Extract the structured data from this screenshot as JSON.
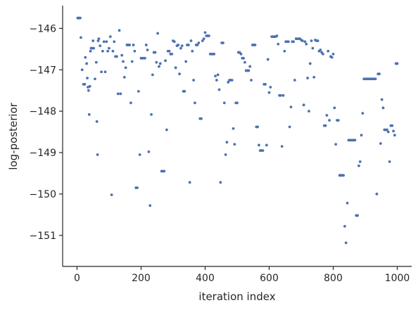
{
  "chart_data": {
    "type": "scatter",
    "title": "",
    "xlabel": "iteration index",
    "ylabel": "log-posterior",
    "xlim": [
      -45,
      1045
    ],
    "ylim": [
      -151.75,
      -145.45
    ],
    "xticks": [
      0,
      200,
      400,
      600,
      800,
      1000
    ],
    "xtick_labels": [
      "0",
      "200",
      "400",
      "600",
      "800",
      "1000"
    ],
    "yticks": [
      -146,
      -147,
      -148,
      -149,
      -150,
      -151
    ],
    "ytick_labels": [
      "−146",
      "−147",
      "−148",
      "−149",
      "−150",
      "−151"
    ],
    "grid": false,
    "legend": "none",
    "marker_color": "#4c72b0",
    "plateau_color": "#a9bcd8",
    "series": [
      {
        "x": [
          2,
          4,
          6,
          8,
          10,
          12,
          16,
          20,
          24,
          26,
          30,
          32,
          34,
          36,
          38,
          40,
          42,
          44,
          46,
          48,
          50,
          52,
          56,
          60,
          62,
          64,
          66,
          68,
          72,
          76,
          80,
          84,
          88,
          92,
          96,
          100,
          104,
          108,
          112,
          116,
          120,
          124,
          128,
          132,
          136,
          140,
          144,
          148,
          152,
          156,
          160,
          164,
          168,
          172,
          176,
          180,
          184,
          188,
          192,
          196,
          200,
          204,
          208,
          212,
          216,
          220,
          224,
          228,
          232,
          236,
          240,
          244,
          248,
          252,
          256,
          260,
          264,
          268,
          272,
          276,
          280,
          284,
          288,
          292,
          296,
          300,
          304,
          308,
          312,
          316,
          320,
          324,
          328,
          332,
          336,
          340,
          344,
          348,
          352,
          356,
          360,
          364,
          368,
          372,
          376,
          380,
          384,
          388,
          392,
          396,
          400,
          404,
          408,
          412,
          416,
          420,
          424,
          428,
          432,
          436,
          440,
          444,
          448,
          452,
          456,
          460,
          464,
          468,
          472,
          476,
          480,
          484,
          488,
          492,
          496,
          500,
          504,
          508,
          512,
          516,
          520,
          524,
          528,
          532,
          536,
          540,
          544,
          548,
          552,
          556,
          560,
          564,
          568,
          572,
          576,
          580,
          584,
          588,
          592,
          596,
          600,
          604,
          608,
          612,
          616,
          620,
          624,
          628,
          632,
          636,
          640,
          644,
          648,
          652,
          656,
          660,
          664,
          668,
          672,
          676,
          680,
          684,
          688,
          692,
          696,
          700,
          704,
          708,
          712,
          716,
          720,
          724,
          728,
          732,
          736,
          740,
          744,
          748,
          752,
          756,
          760,
          764,
          768,
          772,
          776,
          780,
          784,
          788,
          792,
          796,
          800,
          804,
          808,
          812,
          816,
          820,
          824,
          828,
          832,
          836,
          840,
          844,
          848,
          852,
          856,
          860,
          864,
          868,
          872,
          876,
          880,
          884,
          888,
          892,
          896,
          900,
          904,
          908,
          912,
          916,
          920,
          924,
          928,
          932,
          936,
          940,
          944,
          948,
          952,
          956,
          960,
          964,
          968,
          972,
          976,
          980,
          984,
          988,
          992,
          996,
          1000
        ],
        "y": [
          -145.75,
          -145.75,
          -145.75,
          -145.75,
          -145.75,
          -146.22,
          -147.0,
          -147.35,
          -147.35,
          -146.7,
          -146.85,
          -147.2,
          -147.42,
          -147.5,
          -148.08,
          -147.4,
          -146.55,
          -146.48,
          -146.48,
          -146.48,
          -146.3,
          -146.48,
          -147.22,
          -146.82,
          -148.25,
          -149.05,
          -146.3,
          -146.25,
          -146.42,
          -147.05,
          -146.55,
          -146.32,
          -147.05,
          -146.32,
          -146.55,
          -146.48,
          -146.2,
          -150.02,
          -146.55,
          -146.32,
          -146.68,
          -146.68,
          -147.58,
          -146.05,
          -147.58,
          -146.65,
          -146.8,
          -147.18,
          -146.95,
          -146.4,
          -146.4,
          -146.4,
          -147.8,
          -146.8,
          -146.4,
          -146.55,
          -149.85,
          -149.85,
          -147.52,
          -149.05,
          -146.72,
          -146.72,
          -146.72,
          -146.72,
          -146.4,
          -146.52,
          -148.98,
          -150.28,
          -148.08,
          -147.12,
          -146.58,
          -146.58,
          -146.82,
          -146.12,
          -146.92,
          -146.85,
          -149.45,
          -149.45,
          -149.45,
          -146.78,
          -148.45,
          -146.55,
          -146.55,
          -146.62,
          -146.62,
          -146.3,
          -146.32,
          -146.95,
          -146.42,
          -146.4,
          -147.1,
          -146.48,
          -146.42,
          -147.52,
          -147.52,
          -146.8,
          -146.4,
          -146.4,
          -149.72,
          -146.3,
          -146.55,
          -147.25,
          -147.8,
          -146.4,
          -146.4,
          -146.35,
          -148.18,
          -148.18,
          -146.3,
          -146.25,
          -146.1,
          -146.18,
          -146.18,
          -146.18,
          -146.62,
          -146.62,
          -146.62,
          -146.62,
          -147.15,
          -147.25,
          -147.12,
          -147.48,
          -149.72,
          -146.35,
          -146.35,
          -147.8,
          -149.05,
          -148.75,
          -147.3,
          -147.25,
          -147.25,
          -147.25,
          -148.42,
          -148.8,
          -147.8,
          -147.8,
          -146.58,
          -146.58,
          -146.62,
          -146.72,
          -146.72,
          -146.82,
          -147.02,
          -147.02,
          -147.02,
          -146.92,
          -147.25,
          -146.4,
          -146.4,
          -146.4,
          -148.38,
          -148.38,
          -148.82,
          -148.95,
          -148.95,
          -148.95,
          -147.35,
          -147.35,
          -148.82,
          -146.75,
          -147.55,
          -147.42,
          -146.2,
          -146.2,
          -146.2,
          -146.2,
          -146.18,
          -146.38,
          -147.62,
          -147.62,
          -148.85,
          -147.62,
          -146.55,
          -146.32,
          -146.32,
          -146.32,
          -148.38,
          -147.9,
          -146.32,
          -146.32,
          -147.25,
          -146.25,
          -146.25,
          -146.25,
          -146.25,
          -146.28,
          -146.3,
          -147.85,
          -146.32,
          -146.38,
          -147.2,
          -148.0,
          -146.85,
          -146.3,
          -146.48,
          -147.18,
          -146.28,
          -146.3,
          -146.3,
          -146.55,
          -146.52,
          -146.58,
          -146.62,
          -148.35,
          -148.35,
          -148.1,
          -146.55,
          -148.22,
          -146.68,
          -146.7,
          -146.62,
          -147.92,
          -148.8,
          -148.22,
          -148.22,
          -149.55,
          -149.55,
          -149.55,
          -149.55,
          -150.78,
          -151.18,
          -150.22,
          -148.7,
          -148.7,
          -148.7,
          -148.7,
          -148.7,
          -148.7,
          -150.52,
          -150.52,
          -149.32,
          -149.22,
          -148.58,
          -148.05,
          -147.22,
          -147.22,
          -147.22,
          -147.22,
          -147.22,
          -147.22,
          -147.22,
          -147.22,
          -147.22,
          -147.22,
          -150.0,
          -147.1,
          -147.1,
          -148.78,
          -147.72,
          -147.92,
          -148.45,
          -148.45,
          -148.45,
          -148.5,
          -149.22,
          -148.35,
          -148.35,
          -148.48,
          -148.58,
          -146.85,
          -146.85
        ]
      }
    ]
  }
}
